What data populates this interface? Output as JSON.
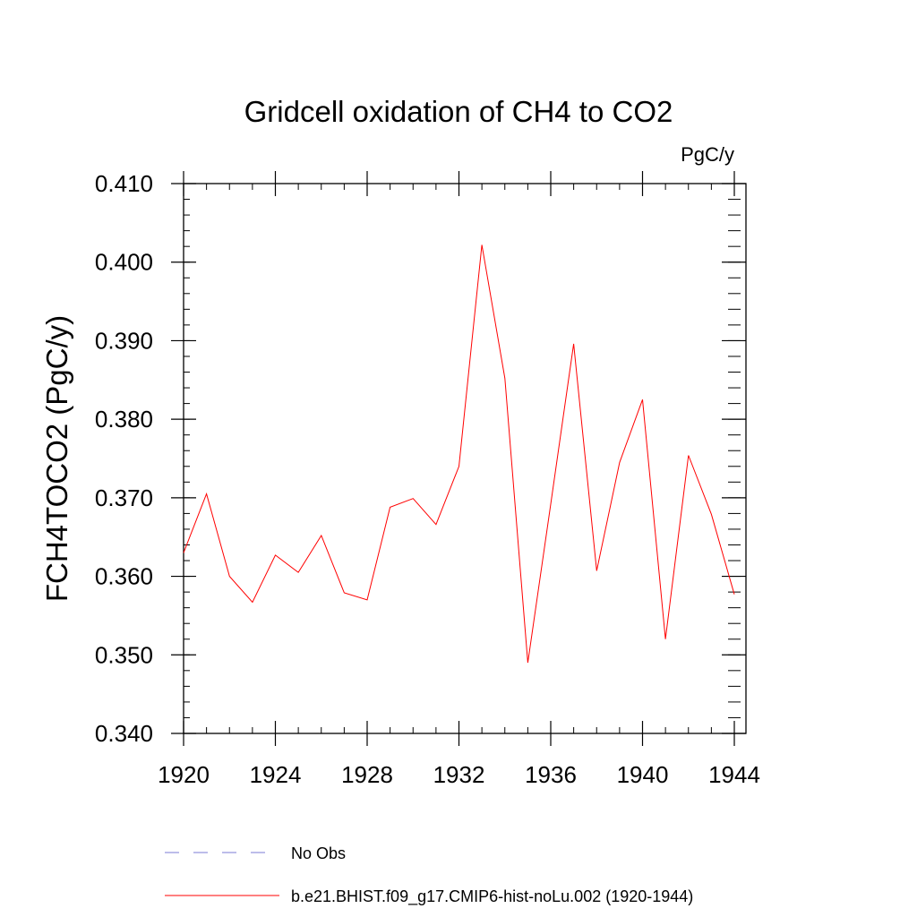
{
  "chart_data": {
    "type": "line",
    "title": "Gridcell oxidation of CH4 to CO2",
    "units_label": "PgC/y",
    "ylabel": "FCH4TOCO2  (PgC/y)",
    "xlabel": "",
    "xlim": [
      1920,
      1944
    ],
    "ylim": [
      0.34,
      0.41
    ],
    "x_ticks": [
      1920,
      1924,
      1928,
      1932,
      1936,
      1940,
      1944
    ],
    "x_tick_labels": [
      "1920",
      "1924",
      "1928",
      "1932",
      "1936",
      "1940",
      "1944"
    ],
    "y_ticks": [
      0.34,
      0.35,
      0.36,
      0.37,
      0.38,
      0.39,
      0.4,
      0.41
    ],
    "y_tick_labels": [
      "0.340",
      "0.350",
      "0.360",
      "0.370",
      "0.380",
      "0.390",
      "0.400",
      "0.410"
    ],
    "x_minor_step": 1,
    "y_minor_step": 0.002,
    "grid": false,
    "legend_position": "bottom",
    "series": [
      {
        "name": "b.e21.BHIST.f09_g17.CMIP6-hist-noLu.002 (1920-1944)",
        "color": "#ff0000",
        "style": "solid",
        "x": [
          1920,
          1921,
          1922,
          1923,
          1924,
          1925,
          1926,
          1927,
          1928,
          1929,
          1930,
          1931,
          1932,
          1933,
          1934,
          1935,
          1936,
          1937,
          1938,
          1939,
          1940,
          1941,
          1942,
          1943,
          1944
        ],
        "values": [
          0.363,
          0.3705,
          0.36,
          0.3567,
          0.3627,
          0.3605,
          0.3652,
          0.3579,
          0.357,
          0.3688,
          0.3699,
          0.3666,
          0.374,
          0.4022,
          0.3852,
          0.349,
          0.3692,
          0.3896,
          0.3607,
          0.3745,
          0.3825,
          0.352,
          0.3754,
          0.3679,
          0.3577
        ]
      }
    ],
    "legend": [
      {
        "label": "No Obs",
        "color": "#7b7bd6",
        "style": "dashed"
      },
      {
        "label": "b.e21.BHIST.f09_g17.CMIP6-hist-noLu.002 (1920-1944)",
        "color": "#ff0000",
        "style": "solid"
      }
    ]
  }
}
